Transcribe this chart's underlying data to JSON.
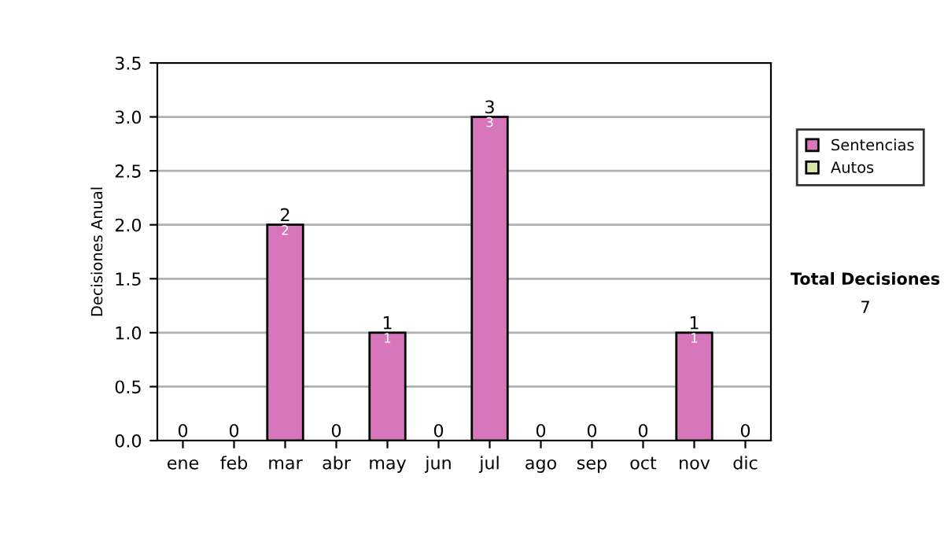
{
  "chart_data": {
    "type": "bar",
    "stacked": true,
    "ylabel": "Decisiones Anual",
    "categories": [
      "ene",
      "feb",
      "mar",
      "abr",
      "may",
      "jun",
      "jul",
      "ago",
      "sep",
      "oct",
      "nov",
      "dic"
    ],
    "series": [
      {
        "name": "Sentencias",
        "color": "#d876bc",
        "values": [
          0,
          0,
          2,
          0,
          1,
          0,
          3,
          0,
          0,
          0,
          1,
          0
        ],
        "value_labels": [
          null,
          null,
          "2",
          null,
          "1",
          null,
          "3",
          null,
          null,
          null,
          "1",
          null
        ]
      },
      {
        "name": "Autos",
        "color": "#d6e8a8",
        "values": [
          0,
          0,
          0,
          0,
          0,
          0,
          0,
          0,
          0,
          0,
          0,
          0
        ]
      }
    ],
    "totals": [
      "0",
      "0",
      "2",
      "0",
      "1",
      "0",
      "3",
      "0",
      "0",
      "0",
      "1",
      "0"
    ],
    "ylim": [
      0,
      3.5
    ],
    "yticks": [
      {
        "value": 0,
        "label": "0.0"
      },
      {
        "value": 0.5,
        "label": "0.5"
      },
      {
        "value": 1,
        "label": "1.0"
      },
      {
        "value": 1.5,
        "label": "1.5"
      },
      {
        "value": 2,
        "label": "2.0"
      },
      {
        "value": 2.5,
        "label": "2.5"
      },
      {
        "value": 3,
        "label": "3.0"
      },
      {
        "value": 3.5,
        "label": "3.5"
      }
    ],
    "grid": "y",
    "legend": "right",
    "annotations": [
      "Total Decisiones",
      "7"
    ]
  }
}
